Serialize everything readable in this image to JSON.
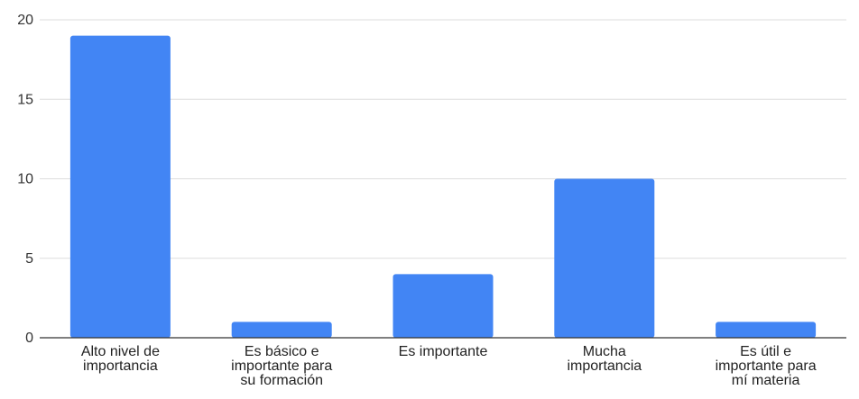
{
  "chart_data": {
    "type": "bar",
    "categories": [
      [
        "Alto nivel de",
        "importancia"
      ],
      [
        "Es básico e",
        "importante para",
        "su formación"
      ],
      [
        "Es importante"
      ],
      [
        "Mucha",
        "importancia"
      ],
      [
        "Es útil e",
        "importante para",
        "mí materia"
      ]
    ],
    "values": [
      19,
      1,
      4,
      10,
      1
    ],
    "ylim": [
      0,
      20
    ],
    "yticks": [
      0,
      5,
      10,
      15,
      20
    ],
    "title": "",
    "xlabel": "",
    "ylabel": "",
    "grid": true,
    "legend": "none",
    "bar_color": "#4285F4",
    "grid_color": "#dddddd",
    "axis_color": "#333333"
  }
}
